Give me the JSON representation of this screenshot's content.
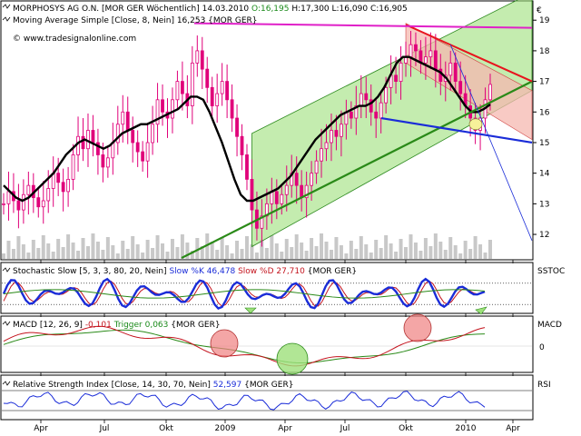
{
  "header": {
    "title_prefix": "MORPHOSYS AG O.N. [MOR GER  Wöchentlich]",
    "date": "14.03.2010",
    "open": "O:16,195",
    "high": "H:17,300",
    "low": "L:16,090",
    "close": "C:16,905",
    "ma_label": "Moving Average Simple [Close, 8, Nein] 16,253 {MOR GER}",
    "url": "www.tradesignalonline.com",
    "currency_symbol": "€"
  },
  "colors": {
    "candle": "#e0007a",
    "ma": "#000000",
    "channel_fill": "#9de07a",
    "channel_line": "#2d8a1f",
    "down_channel_fill": "#f5b8b0",
    "trend_red": "#e8141e",
    "trend_blue": "#1a2cd8",
    "trend_green": "#2a8a18",
    "magenta_line": "#e020c8",
    "volume": "#c8c8c8"
  },
  "chart_data": [
    {
      "type": "candlestick",
      "title": "MORPHOSYS AG O.N. [MOR GER  Wöchentlich]",
      "ylim": [
        11.2,
        19.6
      ],
      "y_ticks": [
        12,
        13,
        14,
        15,
        16,
        17,
        18,
        19
      ],
      "x_tick_labels": [
        "Apr",
        "Jul",
        "Okt",
        "2009",
        "Apr",
        "Jul",
        "Okt",
        "2010",
        "Apr"
      ],
      "ohlc_weekly_close": [
        13.0,
        13.4,
        13.1,
        12.8,
        13.3,
        13.6,
        13.2,
        12.9,
        13.1,
        13.5,
        14.0,
        13.7,
        13.4,
        13.8,
        14.6,
        15.2,
        14.8,
        15.4,
        15.0,
        14.6,
        14.2,
        14.5,
        15.0,
        15.6,
        16.0,
        15.4,
        15.0,
        14.7,
        14.4,
        15.0,
        15.6,
        16.4,
        16.0,
        15.8,
        16.4,
        17.0,
        16.6,
        16.2,
        17.6,
        18.0,
        17.4,
        16.8,
        16.2,
        16.6,
        17.0,
        16.4,
        15.8,
        15.2,
        14.6,
        13.8,
        12.8,
        12.2,
        12.6,
        13.0,
        13.4,
        13.0,
        13.3,
        13.6,
        14.0,
        13.6,
        13.2,
        13.6,
        14.0,
        14.4,
        14.8,
        15.0,
        15.4,
        15.2,
        15.6,
        16.0,
        15.8,
        16.2,
        16.6,
        16.4,
        16.0,
        15.8,
        16.3,
        16.8,
        17.2,
        17.0,
        17.6,
        17.8,
        18.2,
        18.0,
        17.6,
        17.8,
        18.0,
        17.4,
        17.0,
        17.2,
        17.6,
        17.0,
        16.6,
        16.2,
        15.8,
        15.4,
        15.8,
        16.4,
        16.9
      ],
      "moving_average_8": [
        13.6,
        13.4,
        13.2,
        13.1,
        13.2,
        13.4,
        13.6,
        13.8,
        14.0,
        14.3,
        14.6,
        14.8,
        15.0,
        15.1,
        15.0,
        14.9,
        14.8,
        14.9,
        15.1,
        15.3,
        15.4,
        15.5,
        15.6,
        15.6,
        15.7,
        15.8,
        15.9,
        16.0,
        16.1,
        16.3,
        16.5,
        16.5,
        16.4,
        16.0,
        15.5,
        15.0,
        14.4,
        13.8,
        13.3,
        13.1,
        13.1,
        13.2,
        13.3,
        13.4,
        13.5,
        13.7,
        13.9,
        14.2,
        14.5,
        14.8,
        15.1,
        15.3,
        15.5,
        15.7,
        15.9,
        16.0,
        16.1,
        16.2,
        16.2,
        16.3,
        16.5,
        16.8,
        17.2,
        17.6,
        17.8,
        17.8,
        17.7,
        17.6,
        17.5,
        17.4,
        17.3,
        17.1,
        16.8,
        16.5,
        16.2,
        16.0,
        16.0,
        16.1,
        16.25
      ],
      "current_ma_value": 16.253
    },
    {
      "type": "line",
      "title": "Stochastic Slow [5, 3, 3, 80, 20, Nein]",
      "series": [
        {
          "name": "Slow %K",
          "last": 46.478
        },
        {
          "name": "Slow %D",
          "last": 27.71
        }
      ],
      "ylim": [
        0,
        100
      ]
    },
    {
      "type": "line",
      "title": "MACD [12, 26, 9]",
      "series": [
        {
          "name": "MACD",
          "last": -0.101
        },
        {
          "name": "Trigger",
          "last": 0.063
        }
      ],
      "y_ticks": [
        0
      ]
    },
    {
      "type": "line",
      "title": "Relative Strength Index [Close, 14, 30, 70, Nein]",
      "series": [
        {
          "name": "RSI",
          "last": 52.597
        }
      ]
    }
  ],
  "panels": {
    "stoch": {
      "prefix": "Stochastic Slow [5, 3, 3, 80, 20, Nein]",
      "k_label": "Slow %K 46,478",
      "d_label": "Slow %D 27,710",
      "suffix": "{MOR GER}",
      "side": "SSTOC"
    },
    "macd": {
      "prefix": "MACD [12, 26, 9]",
      "value": "-0,101",
      "trigger": "Trigger 0,063",
      "suffix": "{MOR GER}",
      "side": "MACD",
      "zero": "0"
    },
    "rsi": {
      "prefix": "Relative Strength Index [Close, 14, 30, 70, Nein]",
      "value": "52,597",
      "suffix": "{MOR GER}",
      "side": "RSI"
    }
  }
}
